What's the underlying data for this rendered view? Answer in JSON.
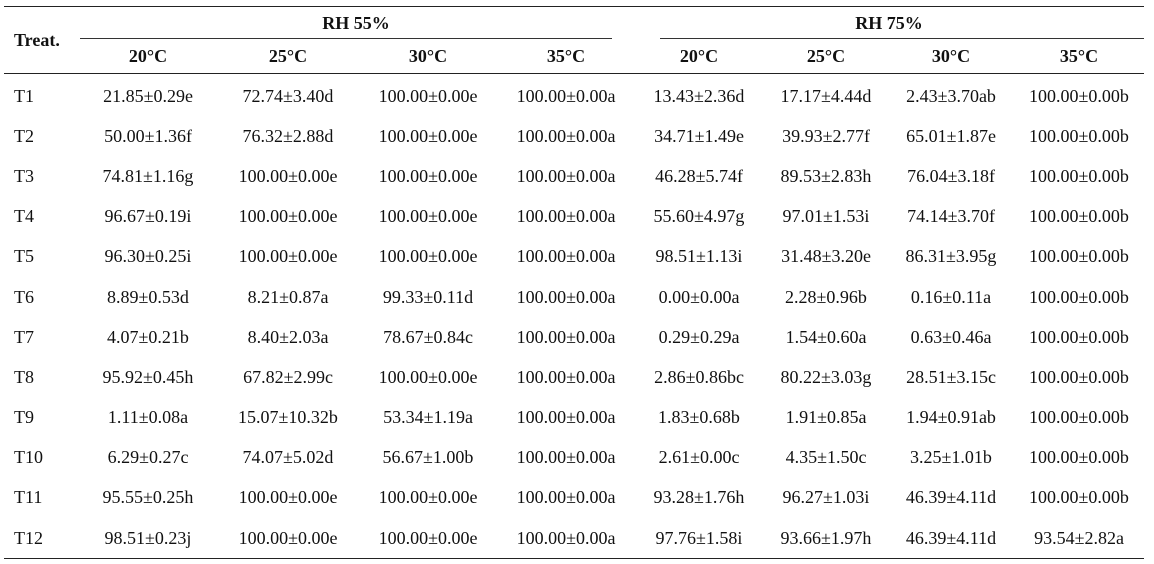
{
  "table": {
    "corner_header": "Treat.",
    "groups": [
      {
        "label": "RH 55%",
        "temps": [
          "20°C",
          "25°C",
          "30°C",
          "35°C"
        ]
      },
      {
        "label": "RH 75%",
        "temps": [
          "20°C",
          "25°C",
          "30°C",
          "35°C"
        ]
      }
    ],
    "rows": [
      {
        "treat": "T1",
        "values": [
          "21.85±0.29e",
          "72.74±3.40d",
          "100.00±0.00e",
          "100.00±0.00a",
          "13.43±2.36d",
          "17.17±4.44d",
          "2.43±3.70ab",
          "100.00±0.00b"
        ]
      },
      {
        "treat": "T2",
        "values": [
          "50.00±1.36f",
          "76.32±2.88d",
          "100.00±0.00e",
          "100.00±0.00a",
          "34.71±1.49e",
          "39.93±2.77f",
          "65.01±1.87e",
          "100.00±0.00b"
        ]
      },
      {
        "treat": "T3",
        "values": [
          "74.81±1.16g",
          "100.00±0.00e",
          "100.00±0.00e",
          "100.00±0.00a",
          "46.28±5.74f",
          "89.53±2.83h",
          "76.04±3.18f",
          "100.00±0.00b"
        ]
      },
      {
        "treat": "T4",
        "values": [
          "96.67±0.19i",
          "100.00±0.00e",
          "100.00±0.00e",
          "100.00±0.00a",
          "55.60±4.97g",
          "97.01±1.53i",
          "74.14±3.70f",
          "100.00±0.00b"
        ]
      },
      {
        "treat": "T5",
        "values": [
          "96.30±0.25i",
          "100.00±0.00e",
          "100.00±0.00e",
          "100.00±0.00a",
          "98.51±1.13i",
          "31.48±3.20e",
          "86.31±3.95g",
          "100.00±0.00b"
        ]
      },
      {
        "treat": "T6",
        "values": [
          "8.89±0.53d",
          "8.21±0.87a",
          "99.33±0.11d",
          "100.00±0.00a",
          "0.00±0.00a",
          "2.28±0.96b",
          "0.16±0.11a",
          "100.00±0.00b"
        ]
      },
      {
        "treat": "T7",
        "values": [
          "4.07±0.21b",
          "8.40±2.03a",
          "78.67±0.84c",
          "100.00±0.00a",
          "0.29±0.29a",
          "1.54±0.60a",
          "0.63±0.46a",
          "100.00±0.00b"
        ]
      },
      {
        "treat": "T8",
        "values": [
          "95.92±0.45h",
          "67.82±2.99c",
          "100.00±0.00e",
          "100.00±0.00a",
          "2.86±0.86bc",
          "80.22±3.03g",
          "28.51±3.15c",
          "100.00±0.00b"
        ]
      },
      {
        "treat": "T9",
        "values": [
          "1.11±0.08a",
          "15.07±10.32b",
          "53.34±1.19a",
          "100.00±0.00a",
          "1.83±0.68b",
          "1.91±0.85a",
          "1.94±0.91ab",
          "100.00±0.00b"
        ]
      },
      {
        "treat": "T10",
        "values": [
          "6.29±0.27c",
          "74.07±5.02d",
          "56.67±1.00b",
          "100.00±0.00a",
          "2.61±0.00c",
          "4.35±1.50c",
          "3.25±1.01b",
          "100.00±0.00b"
        ]
      },
      {
        "treat": "T11",
        "values": [
          "95.55±0.25h",
          "100.00±0.00e",
          "100.00±0.00e",
          "100.00±0.00a",
          "93.28±1.76h",
          "96.27±1.03i",
          "46.39±4.11d",
          "100.00±0.00b"
        ]
      },
      {
        "treat": "T12",
        "values": [
          "98.51±0.23j",
          "100.00±0.00e",
          "100.00±0.00e",
          "100.00±0.00a",
          "97.76±1.58i",
          "93.66±1.97h",
          "46.39±4.11d",
          "93.54±2.82a"
        ]
      }
    ]
  }
}
